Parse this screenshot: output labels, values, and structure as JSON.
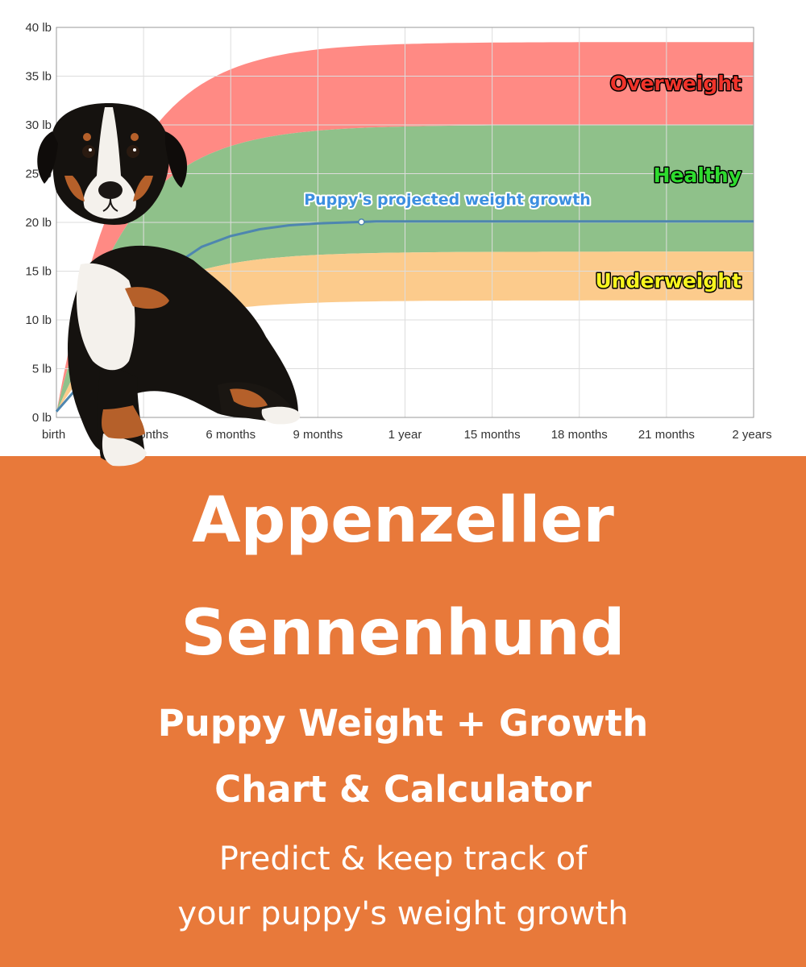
{
  "colors": {
    "banner": "#E8793A",
    "overweight_band": "#FF8A84",
    "healthy_band": "#8FC18A",
    "underweight_band": "#FCCB8C",
    "projection_line": "#4E86AF",
    "overweight_text": "#F0332A",
    "healthy_text": "#2EDB2E",
    "underweight_text": "#F7F41E",
    "projection_text": "#3D8FE0",
    "grid": "#DDDDDD"
  },
  "chart_data": {
    "type": "area",
    "x_unit": "months",
    "xlim": [
      0,
      24
    ],
    "ylim": [
      0,
      40
    ],
    "x_ticks": [
      {
        "value": 0,
        "label": "birth"
      },
      {
        "value": 3,
        "label": "3 months"
      },
      {
        "value": 6,
        "label": "6 months"
      },
      {
        "value": 9,
        "label": "9 months"
      },
      {
        "value": 12,
        "label": "1 year"
      },
      {
        "value": 15,
        "label": "15 months"
      },
      {
        "value": 18,
        "label": "18 months"
      },
      {
        "value": 21,
        "label": "21 months"
      },
      {
        "value": 24,
        "label": "2 years"
      }
    ],
    "y_ticks": [
      {
        "value": 0,
        "label": "0 lb"
      },
      {
        "value": 5,
        "label": "5 lb"
      },
      {
        "value": 10,
        "label": "10 lb"
      },
      {
        "value": 15,
        "label": "15 lb"
      },
      {
        "value": 20,
        "label": "20 lb"
      },
      {
        "value": 25,
        "label": "25 lb"
      },
      {
        "value": 30,
        "label": "30 lb"
      },
      {
        "value": 35,
        "label": "35 lb"
      },
      {
        "value": 40,
        "label": "40 lb"
      }
    ],
    "grid": true,
    "bands": [
      {
        "name": "Overweight",
        "lower_final": 30,
        "upper_final": 38.5
      },
      {
        "name": "Healthy",
        "lower_final": 17,
        "upper_final": 30
      },
      {
        "name": "Underweight",
        "lower_final": 12,
        "upper_final": 17
      }
    ],
    "projection": {
      "name": "Puppy's projected weight growth",
      "x": [
        0,
        1,
        2,
        3,
        4,
        5,
        6,
        7,
        8,
        9,
        10,
        11,
        12,
        15,
        18,
        21,
        24
      ],
      "y": [
        0.6,
        4,
        8.5,
        12.5,
        15.5,
        17.5,
        18.6,
        19.3,
        19.7,
        19.9,
        20,
        20.1,
        20.1,
        20.1,
        20.1,
        20.1,
        20.1
      ],
      "marker_at_x": 10.5
    },
    "labels": {
      "overweight": "Overweight",
      "healthy": "Healthy",
      "underweight": "Underweight",
      "projection": "Puppy's projected weight growth"
    }
  },
  "banner": {
    "title_line1": "Appenzeller",
    "title_line2": "Sennenhund",
    "subtitle_line1": "Puppy Weight + Growth",
    "subtitle_line2": "Chart & Calculator",
    "tagline_line1": "Predict & keep track of",
    "tagline_line2": "your puppy's weight growth"
  },
  "icons": {
    "puppy_image": "appenzeller-puppy-image"
  }
}
